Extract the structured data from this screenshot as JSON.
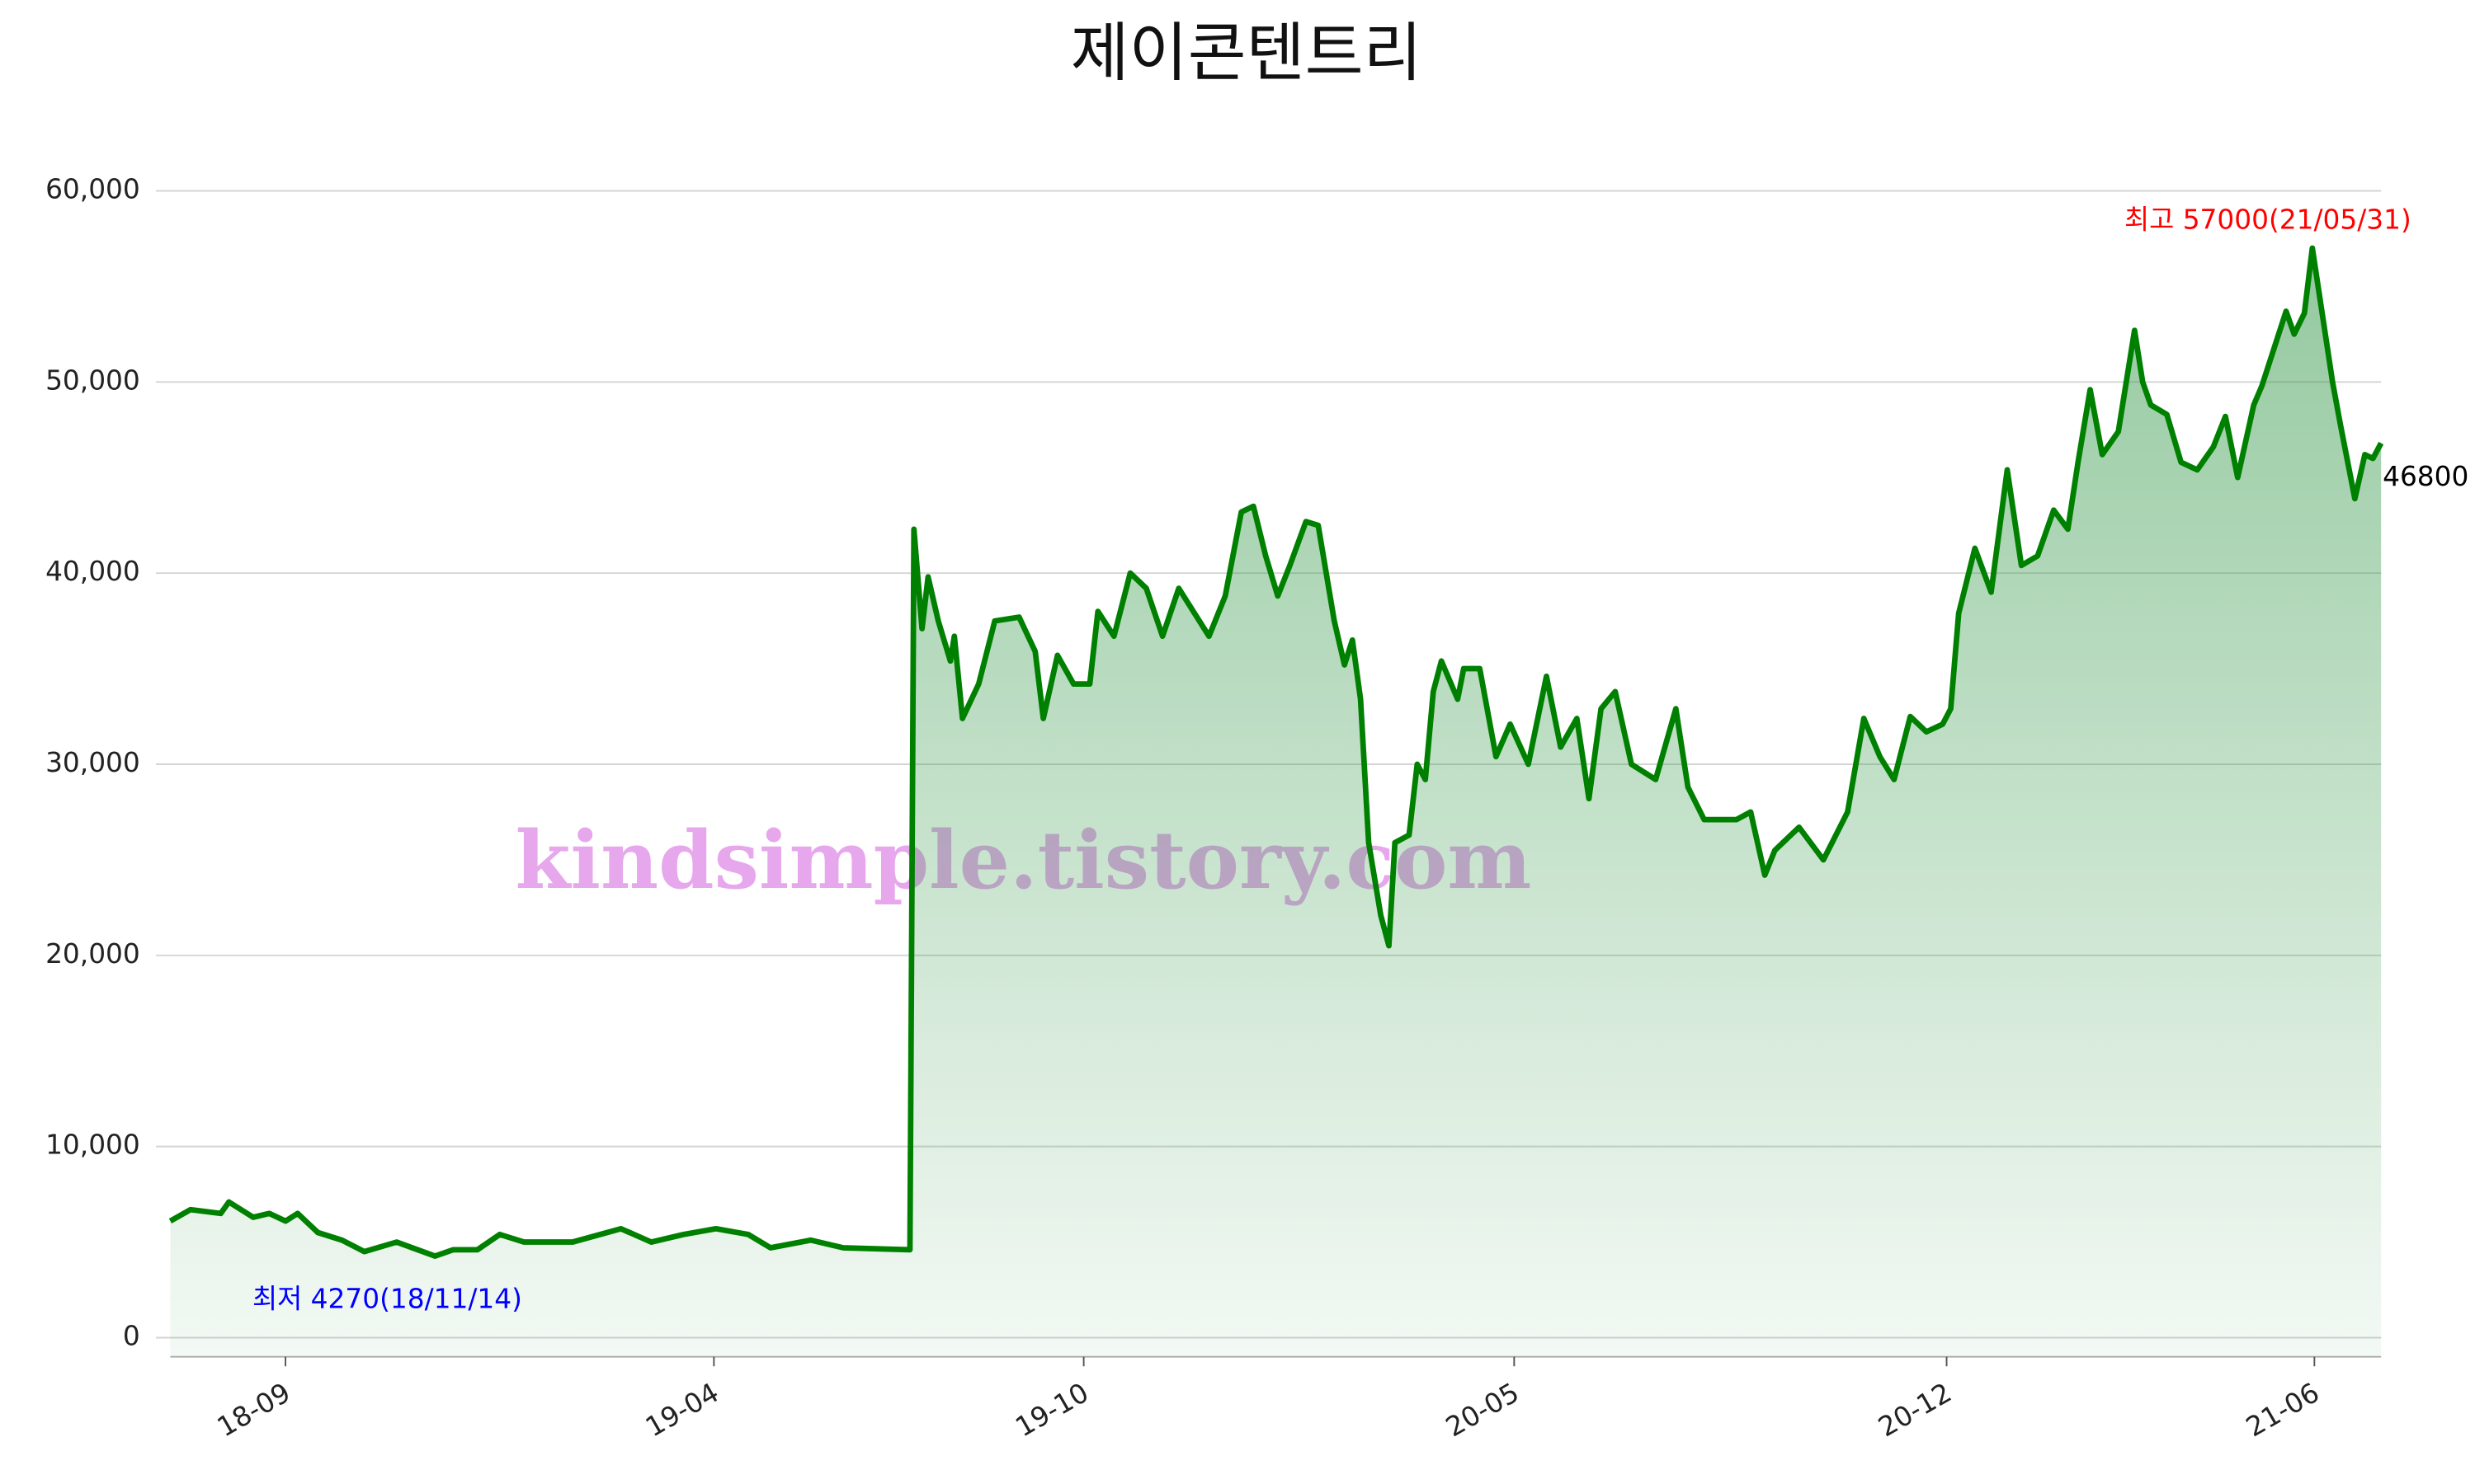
{
  "chart_data": {
    "type": "line",
    "title": "제이콘텐트리",
    "watermark": "kindsimple.tistory.com",
    "color": "#008000",
    "area_color": "#3c9c50",
    "grid": true,
    "xlim": [
      "2018-07-06",
      "2021-07-04"
    ],
    "xticks": [
      {
        "value": "2018-09-01",
        "label": "18-09"
      },
      {
        "value": "2019-04-01",
        "label": "19-04"
      },
      {
        "value": "2019-10-01",
        "label": "19-10"
      },
      {
        "value": "2020-05-01",
        "label": "20-05"
      },
      {
        "value": "2020-12-01",
        "label": "20-12"
      },
      {
        "value": "2021-06-01",
        "label": "21-06"
      }
    ],
    "ylim": [
      -1000,
      60000
    ],
    "yticks": [
      0,
      {
        "value": 10000,
        "label": "10,000"
      },
      {
        "value": 20000,
        "label": "20,000"
      },
      {
        "value": 30000,
        "label": "30,000"
      },
      {
        "value": 40000,
        "label": "40,000"
      },
      {
        "value": 50000,
        "label": "50,000"
      },
      {
        "value": 60000,
        "label": "60,000"
      }
    ],
    "annotations": [
      {
        "text": "최고 57000(21/05/31)",
        "color": "#ff0000"
      },
      {
        "text": "최저 4270(18/11/14)",
        "color": "#0000ff"
      },
      {
        "text": "46800",
        "color": "#000000"
      }
    ],
    "x": [
      "2018-07-06",
      "2018-07-16",
      "2018-07-31",
      "2018-08-04",
      "2018-08-16",
      "2018-08-24",
      "2018-09-01",
      "2018-09-07",
      "2018-09-17",
      "2018-09-29",
      "2018-10-10",
      "2018-10-26",
      "2018-11-14",
      "2018-11-23",
      "2018-12-05",
      "2018-12-16",
      "2018-12-28",
      "2019-01-21",
      "2019-02-14",
      "2019-03-01",
      "2019-03-17",
      "2019-04-02",
      "2019-04-18",
      "2019-04-29",
      "2019-05-19",
      "2019-06-04",
      "2019-07-07",
      "2019-07-09",
      "2019-07-13",
      "2019-07-16",
      "2019-07-21",
      "2019-07-27",
      "2019-07-29",
      "2019-08-02",
      "2019-08-10",
      "2019-08-18",
      "2019-08-30",
      "2019-09-07",
      "2019-09-11",
      "2019-09-18",
      "2019-09-26",
      "2019-10-04",
      "2019-10-08",
      "2019-10-16",
      "2019-10-24",
      "2019-11-01",
      "2019-11-09",
      "2019-11-17",
      "2019-12-02",
      "2019-12-10",
      "2019-12-18",
      "2019-12-24",
      "2019-12-30",
      "2020-01-05",
      "2020-01-11",
      "2020-01-19",
      "2020-01-25",
      "2020-02-02",
      "2020-02-07",
      "2020-02-11",
      "2020-02-15",
      "2020-02-19",
      "2020-02-25",
      "2020-02-29",
      "2020-03-03",
      "2020-03-10",
      "2020-03-14",
      "2020-03-18",
      "2020-03-22",
      "2020-03-26",
      "2020-04-03",
      "2020-04-06",
      "2020-04-14",
      "2020-04-22",
      "2020-04-29",
      "2020-05-08",
      "2020-05-17",
      "2020-05-24",
      "2020-06-01",
      "2020-06-07",
      "2020-06-13",
      "2020-06-20",
      "2020-06-28",
      "2020-07-10",
      "2020-07-20",
      "2020-07-26",
      "2020-08-03",
      "2020-08-19",
      "2020-08-26",
      "2020-09-02",
      "2020-09-07",
      "2020-09-19",
      "2020-10-01",
      "2020-10-13",
      "2020-10-21",
      "2020-10-29",
      "2020-11-05",
      "2020-11-13",
      "2020-11-21",
      "2020-11-29",
      "2020-12-03",
      "2020-12-07",
      "2020-12-15",
      "2020-12-23",
      "2020-12-31",
      "2021-01-07",
      "2021-01-15",
      "2021-01-23",
      "2021-01-30",
      "2021-02-04",
      "2021-02-10",
      "2021-02-16",
      "2021-02-24",
      "2021-03-04",
      "2021-03-08",
      "2021-03-12",
      "2021-03-20",
      "2021-03-27",
      "2021-04-04",
      "2021-04-12",
      "2021-04-18",
      "2021-04-24",
      "2021-05-02",
      "2021-05-06",
      "2021-05-18",
      "2021-05-22",
      "2021-05-27",
      "2021-05-31",
      "2021-06-10",
      "2021-06-14",
      "2021-06-21",
      "2021-06-26",
      "2021-06-30",
      "2021-07-04"
    ],
    "values": [
      6100,
      6700,
      6500,
      7100,
      6300,
      6500,
      6100,
      6500,
      5500,
      5100,
      4500,
      5000,
      4270,
      4600,
      4600,
      5400,
      5000,
      5000,
      5700,
      5000,
      5400,
      5700,
      5400,
      4700,
      5100,
      4700,
      4600,
      42300,
      37100,
      39800,
      37500,
      35400,
      36700,
      32400,
      34200,
      37500,
      37700,
      35900,
      32400,
      35700,
      34200,
      34200,
      38000,
      36700,
      40000,
      39200,
      36700,
      39200,
      36700,
      38800,
      43200,
      43500,
      40900,
      38800,
      40400,
      42700,
      42500,
      37500,
      35200,
      36500,
      33400,
      25900,
      22100,
      20500,
      25900,
      26300,
      30000,
      29200,
      33800,
      35400,
      33400,
      35000,
      35000,
      30400,
      32100,
      30000,
      34600,
      30900,
      32400,
      28200,
      32900,
      33800,
      30000,
      29200,
      32900,
      28800,
      27100,
      27100,
      27500,
      24200,
      25500,
      26700,
      25000,
      27500,
      32400,
      30400,
      29200,
      32500,
      31700,
      32100,
      32900,
      37900,
      41300,
      39000,
      45400,
      40400,
      40900,
      43300,
      42300,
      45800,
      49600,
      46200,
      47400,
      52700,
      50000,
      48800,
      48300,
      45800,
      45400,
      46600,
      48200,
      45000,
      48800,
      49800,
      53700,
      52500,
      53600,
      57000,
      50000,
      47700,
      43900,
      46200,
      46000,
      46800
    ]
  }
}
